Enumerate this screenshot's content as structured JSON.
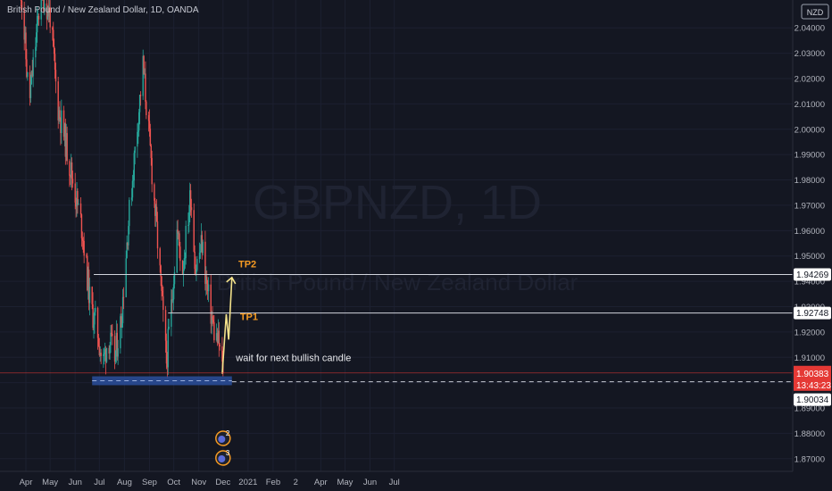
{
  "header": {
    "symbol_title": "British Pound / New Zealand Dollar, 1D, OANDA"
  },
  "watermark": {
    "symbol": "GBPNZD, 1D",
    "description": "British Pound / New Zealand Dollar"
  },
  "currency_badge": "NZD",
  "colors": {
    "background": "#141722",
    "bull": "#26a69a",
    "bear": "#ef5350",
    "hline": "#d1d4dc",
    "annotation_orange": "#f59a23",
    "arrow": "#f3e28b",
    "support_zone": "#2a4f9c",
    "last_price_tag": "#e53935"
  },
  "chart_data": {
    "type": "candlestick",
    "title": "British Pound / New Zealand Dollar, 1D, OANDA",
    "ylim": [
      1.865,
      2.051
    ],
    "y_ticks": [
      1.87,
      1.88,
      1.89,
      1.9,
      1.91,
      1.92,
      1.93,
      1.94,
      1.95,
      1.96,
      1.97,
      1.98,
      1.99,
      2.0,
      2.01,
      2.02,
      2.03,
      2.04
    ],
    "x_ticks": [
      "Apr",
      "May",
      "Jun",
      "Jul",
      "Aug",
      "Sep",
      "Oct",
      "Nov",
      "Dec",
      "2021",
      "Feb",
      "2",
      "Apr",
      "May",
      "Jun",
      "Jul"
    ],
    "waypoints": [
      [
        "2020-03-25",
        2.06
      ],
      [
        "2020-04-05",
        2.01
      ],
      [
        "2020-04-20",
        2.055
      ],
      [
        "2020-05-01",
        2.045
      ],
      [
        "2020-05-10",
        2.01
      ],
      [
        "2020-05-20",
        1.995
      ],
      [
        "2020-06-01",
        1.975
      ],
      [
        "2020-06-10",
        1.96
      ],
      [
        "2020-06-20",
        1.93
      ],
      [
        "2020-06-28",
        1.922
      ],
      [
        "2020-07-05",
        1.907
      ],
      [
        "2020-07-12",
        1.918
      ],
      [
        "2020-07-20",
        1.91
      ],
      [
        "2020-07-28",
        1.925
      ],
      [
        "2020-08-05",
        1.96
      ],
      [
        "2020-08-15",
        1.995
      ],
      [
        "2020-08-24",
        2.025
      ],
      [
        "2020-09-01",
        1.995
      ],
      [
        "2020-09-10",
        1.96
      ],
      [
        "2020-09-18",
        1.925
      ],
      [
        "2020-09-22",
        1.908
      ],
      [
        "2020-09-28",
        1.93
      ],
      [
        "2020-10-05",
        1.96
      ],
      [
        "2020-10-12",
        1.945
      ],
      [
        "2020-10-22",
        1.975
      ],
      [
        "2020-10-28",
        1.945
      ],
      [
        "2020-11-05",
        1.955
      ],
      [
        "2020-11-12",
        1.935
      ],
      [
        "2020-11-20",
        1.92
      ],
      [
        "2020-11-26",
        1.915
      ],
      [
        "2020-11-30",
        1.905
      ],
      [
        "2020-12-01",
        1.9038
      ]
    ],
    "annotations": {
      "tp2": {
        "label": "TP2",
        "price": 1.94269,
        "price_label": "1.94269"
      },
      "tp1": {
        "label": "TP1",
        "price": 1.92748,
        "price_label": "1.92748"
      },
      "note": "wait for next bullish candle",
      "support_zone": {
        "low": 1.899,
        "high": 1.9025,
        "start": "2020-06-22",
        "end": "2020-12-12"
      },
      "last_price": {
        "value": 1.90383,
        "label": "1.90383",
        "countdown": "13:43:23"
      },
      "crosshair": {
        "value": 1.90034,
        "label": "1.90034"
      }
    },
    "events": [
      {
        "label": "2",
        "date": "2020-12-01"
      },
      {
        "label": "3",
        "date": "2020-12-01"
      }
    ]
  }
}
